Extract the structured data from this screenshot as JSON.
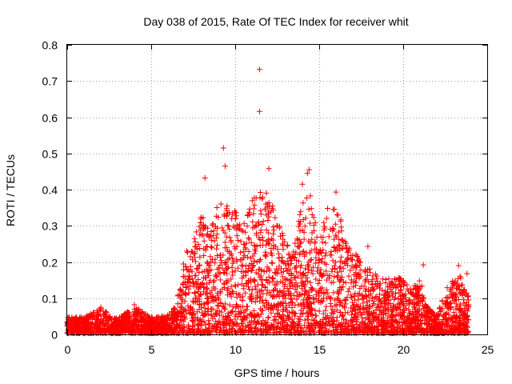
{
  "chart_data": {
    "type": "scatter",
    "title": "Day 038 of 2015, Rate Of TEC Index for receiver whit",
    "xlabel": "GPS time / hours",
    "ylabel": "ROTI / TECUs",
    "xlim": [
      0,
      25
    ],
    "ylim": [
      0,
      0.8
    ],
    "xticks": [
      0,
      5,
      10,
      15,
      20,
      25
    ],
    "yticks": [
      0,
      0.1,
      0.2,
      0.3,
      0.4,
      0.5,
      0.6,
      0.7,
      0.8
    ],
    "grid": true,
    "marker": "+",
    "color": "#ff0000",
    "series": [
      {
        "name": "ROTI",
        "outliers": [
          {
            "x": 11.45,
            "y": 0.732
          },
          {
            "x": 11.45,
            "y": 0.616
          },
          {
            "x": 9.3,
            "y": 0.515
          },
          {
            "x": 9.4,
            "y": 0.465
          },
          {
            "x": 12.0,
            "y": 0.458
          },
          {
            "x": 14.4,
            "y": 0.455
          },
          {
            "x": 14.3,
            "y": 0.445
          },
          {
            "x": 8.2,
            "y": 0.432
          },
          {
            "x": 14.0,
            "y": 0.415
          },
          {
            "x": 16.0,
            "y": 0.393
          },
          {
            "x": 15.5,
            "y": 0.348
          },
          {
            "x": 17.9,
            "y": 0.243
          },
          {
            "x": 23.3,
            "y": 0.19
          },
          {
            "x": 21.2,
            "y": 0.192
          },
          {
            "x": 23.8,
            "y": 0.168
          },
          {
            "x": 4.0,
            "y": 0.082
          },
          {
            "x": 2.0,
            "y": 0.075
          }
        ],
        "envelope": [
          {
            "x": 0.0,
            "y": 0.045
          },
          {
            "x": 1.0,
            "y": 0.045
          },
          {
            "x": 2.0,
            "y": 0.07
          },
          {
            "x": 3.0,
            "y": 0.04
          },
          {
            "x": 4.0,
            "y": 0.075
          },
          {
            "x": 5.0,
            "y": 0.045
          },
          {
            "x": 6.0,
            "y": 0.05
          },
          {
            "x": 6.5,
            "y": 0.08
          },
          {
            "x": 7.0,
            "y": 0.22
          },
          {
            "x": 7.5,
            "y": 0.25
          },
          {
            "x": 8.0,
            "y": 0.33
          },
          {
            "x": 8.5,
            "y": 0.3
          },
          {
            "x": 9.0,
            "y": 0.36
          },
          {
            "x": 9.5,
            "y": 0.36
          },
          {
            "x": 10.0,
            "y": 0.35
          },
          {
            "x": 10.5,
            "y": 0.3
          },
          {
            "x": 11.0,
            "y": 0.37
          },
          {
            "x": 11.5,
            "y": 0.39
          },
          {
            "x": 12.0,
            "y": 0.39
          },
          {
            "x": 12.5,
            "y": 0.32
          },
          {
            "x": 13.0,
            "y": 0.25
          },
          {
            "x": 13.5,
            "y": 0.27
          },
          {
            "x": 14.0,
            "y": 0.37
          },
          {
            "x": 14.5,
            "y": 0.38
          },
          {
            "x": 15.0,
            "y": 0.3
          },
          {
            "x": 15.5,
            "y": 0.33
          },
          {
            "x": 16.0,
            "y": 0.36
          },
          {
            "x": 16.5,
            "y": 0.28
          },
          {
            "x": 17.0,
            "y": 0.24
          },
          {
            "x": 17.5,
            "y": 0.2
          },
          {
            "x": 18.0,
            "y": 0.18
          },
          {
            "x": 18.5,
            "y": 0.16
          },
          {
            "x": 19.0,
            "y": 0.15
          },
          {
            "x": 19.5,
            "y": 0.16
          },
          {
            "x": 20.0,
            "y": 0.15
          },
          {
            "x": 20.5,
            "y": 0.12
          },
          {
            "x": 21.0,
            "y": 0.16
          },
          {
            "x": 21.5,
            "y": 0.07
          },
          {
            "x": 22.0,
            "y": 0.05
          },
          {
            "x": 22.5,
            "y": 0.12
          },
          {
            "x": 23.0,
            "y": 0.15
          },
          {
            "x": 23.5,
            "y": 0.16
          },
          {
            "x": 23.9,
            "y": 0.1
          }
        ],
        "x_range": [
          0,
          23.9
        ],
        "approx_point_count": 4000
      }
    ]
  }
}
